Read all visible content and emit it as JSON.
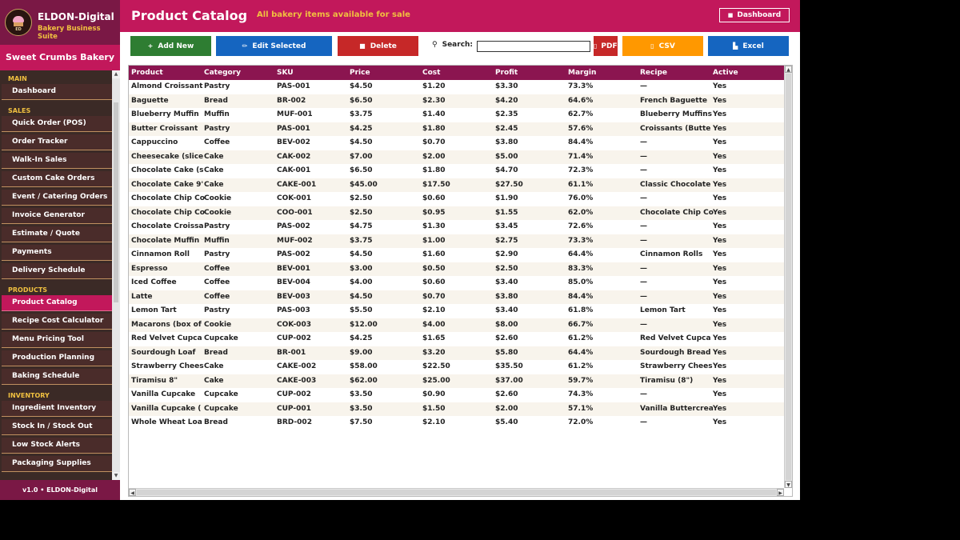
{
  "brand": {
    "title": "ELDON-Digital",
    "subtitle": "Bakery Business Suite",
    "logo_initials": "ED"
  },
  "shop_name": "Sweet Crumbs Bakery",
  "nav": {
    "sections": [
      {
        "label": "MAIN",
        "items": [
          "Dashboard"
        ]
      },
      {
        "label": "SALES",
        "items": [
          "Quick Order (POS)",
          "Order Tracker",
          "Walk-In Sales",
          "Custom Cake Orders",
          "Event / Catering Orders",
          "Invoice Generator",
          "Estimate / Quote",
          "Payments",
          "Delivery Schedule"
        ]
      },
      {
        "label": "PRODUCTS",
        "items": [
          "Product Catalog",
          "Recipe Cost Calculator",
          "Menu Pricing Tool",
          "Production Planning",
          "Baking Schedule"
        ]
      },
      {
        "label": "INVENTORY",
        "items": [
          "Ingredient Inventory",
          "Stock In / Stock Out",
          "Low Stock Alerts",
          "Packaging Supplies"
        ]
      }
    ],
    "active": "Product Catalog"
  },
  "footer": "v1.0  •  ELDON-Digital",
  "header": {
    "title": "Product Catalog",
    "subtitle": "All bakery items available for sale",
    "dashboard_label": "Dashboard"
  },
  "toolbar": {
    "add_label": "Add New",
    "edit_label": "Edit Selected",
    "delete_label": "Delete",
    "search_label": "Search:",
    "search_value": "",
    "pdf_label": "PDF",
    "csv_label": "CSV",
    "excel_label": "Excel"
  },
  "colors": {
    "sidebar": "#3b2a26",
    "brand": "#7a1845",
    "accent": "#c2185b",
    "table_header": "#8b1550",
    "gold": "#f0c040",
    "add": "#2e7d32",
    "edit": "#1565c0",
    "delete": "#c62828",
    "csv": "#ff9800"
  },
  "table": {
    "columns": [
      "Product",
      "Category",
      "SKU",
      "Price",
      "Cost",
      "Profit",
      "Margin",
      "Recipe",
      "Active"
    ],
    "rows": [
      [
        "Almond Croissant",
        "Pastry",
        "PAS-001",
        "$4.50",
        "$1.20",
        "$3.30",
        "73.3%",
        "—",
        "Yes"
      ],
      [
        "Baguette",
        "Bread",
        "BR-002",
        "$6.50",
        "$2.30",
        "$4.20",
        "64.6%",
        "French Baguette",
        "Yes"
      ],
      [
        "Blueberry Muffin",
        "Muffin",
        "MUF-001",
        "$3.75",
        "$1.40",
        "$2.35",
        "62.7%",
        "Blueberry Muffins",
        "Yes"
      ],
      [
        "Butter Croissant",
        "Pastry",
        "PAS-001",
        "$4.25",
        "$1.80",
        "$2.45",
        "57.6%",
        "Croissants (Butte",
        "Yes"
      ],
      [
        "Cappuccino",
        "Coffee",
        "BEV-002",
        "$4.50",
        "$0.70",
        "$3.80",
        "84.4%",
        "—",
        "Yes"
      ],
      [
        "Cheesecake (slice",
        "Cake",
        "CAK-002",
        "$7.00",
        "$2.00",
        "$5.00",
        "71.4%",
        "—",
        "Yes"
      ],
      [
        "Chocolate Cake (s",
        "Cake",
        "CAK-001",
        "$6.50",
        "$1.80",
        "$4.70",
        "72.3%",
        "—",
        "Yes"
      ],
      [
        "Chocolate Cake 9'",
        "Cake",
        "CAKE-001",
        "$45.00",
        "$17.50",
        "$27.50",
        "61.1%",
        "Classic Chocolate",
        "Yes"
      ],
      [
        "Chocolate Chip Co",
        "Cookie",
        "COK-001",
        "$2.50",
        "$0.60",
        "$1.90",
        "76.0%",
        "—",
        "Yes"
      ],
      [
        "Chocolate Chip Co",
        "Cookie",
        "COO-001",
        "$2.50",
        "$0.95",
        "$1.55",
        "62.0%",
        "Chocolate Chip Co",
        "Yes"
      ],
      [
        "Chocolate Croissa",
        "Pastry",
        "PAS-002",
        "$4.75",
        "$1.30",
        "$3.45",
        "72.6%",
        "—",
        "Yes"
      ],
      [
        "Chocolate Muffin",
        "Muffin",
        "MUF-002",
        "$3.75",
        "$1.00",
        "$2.75",
        "73.3%",
        "—",
        "Yes"
      ],
      [
        "Cinnamon Roll",
        "Pastry",
        "PAS-002",
        "$4.50",
        "$1.60",
        "$2.90",
        "64.4%",
        "Cinnamon Rolls",
        "Yes"
      ],
      [
        "Espresso",
        "Coffee",
        "BEV-001",
        "$3.00",
        "$0.50",
        "$2.50",
        "83.3%",
        "—",
        "Yes"
      ],
      [
        "Iced Coffee",
        "Coffee",
        "BEV-004",
        "$4.00",
        "$0.60",
        "$3.40",
        "85.0%",
        "—",
        "Yes"
      ],
      [
        "Latte",
        "Coffee",
        "BEV-003",
        "$4.50",
        "$0.70",
        "$3.80",
        "84.4%",
        "—",
        "Yes"
      ],
      [
        "Lemon Tart",
        "Pastry",
        "PAS-003",
        "$5.50",
        "$2.10",
        "$3.40",
        "61.8%",
        "Lemon Tart",
        "Yes"
      ],
      [
        "Macarons (box of",
        "Cookie",
        "COK-003",
        "$12.00",
        "$4.00",
        "$8.00",
        "66.7%",
        "—",
        "Yes"
      ],
      [
        "Red Velvet Cupca",
        "Cupcake",
        "CUP-002",
        "$4.25",
        "$1.65",
        "$2.60",
        "61.2%",
        "Red Velvet Cupca",
        "Yes"
      ],
      [
        "Sourdough Loaf",
        "Bread",
        "BR-001",
        "$9.00",
        "$3.20",
        "$5.80",
        "64.4%",
        "Sourdough Bread",
        "Yes"
      ],
      [
        "Strawberry Chees",
        "Cake",
        "CAKE-002",
        "$58.00",
        "$22.50",
        "$35.50",
        "61.2%",
        "Strawberry Chees",
        "Yes"
      ],
      [
        "Tiramisu 8\"",
        "Cake",
        "CAKE-003",
        "$62.00",
        "$25.00",
        "$37.00",
        "59.7%",
        "Tiramisu (8\")",
        "Yes"
      ],
      [
        "Vanilla Cupcake",
        "Cupcake",
        "CUP-002",
        "$3.50",
        "$0.90",
        "$2.60",
        "74.3%",
        "—",
        "Yes"
      ],
      [
        "Vanilla Cupcake (",
        "Cupcake",
        "CUP-001",
        "$3.50",
        "$1.50",
        "$2.00",
        "57.1%",
        "Vanilla Buttercrea",
        "Yes"
      ],
      [
        "Whole Wheat Loa",
        "Bread",
        "BRD-002",
        "$7.50",
        "$2.10",
        "$5.40",
        "72.0%",
        "—",
        "Yes"
      ]
    ]
  }
}
